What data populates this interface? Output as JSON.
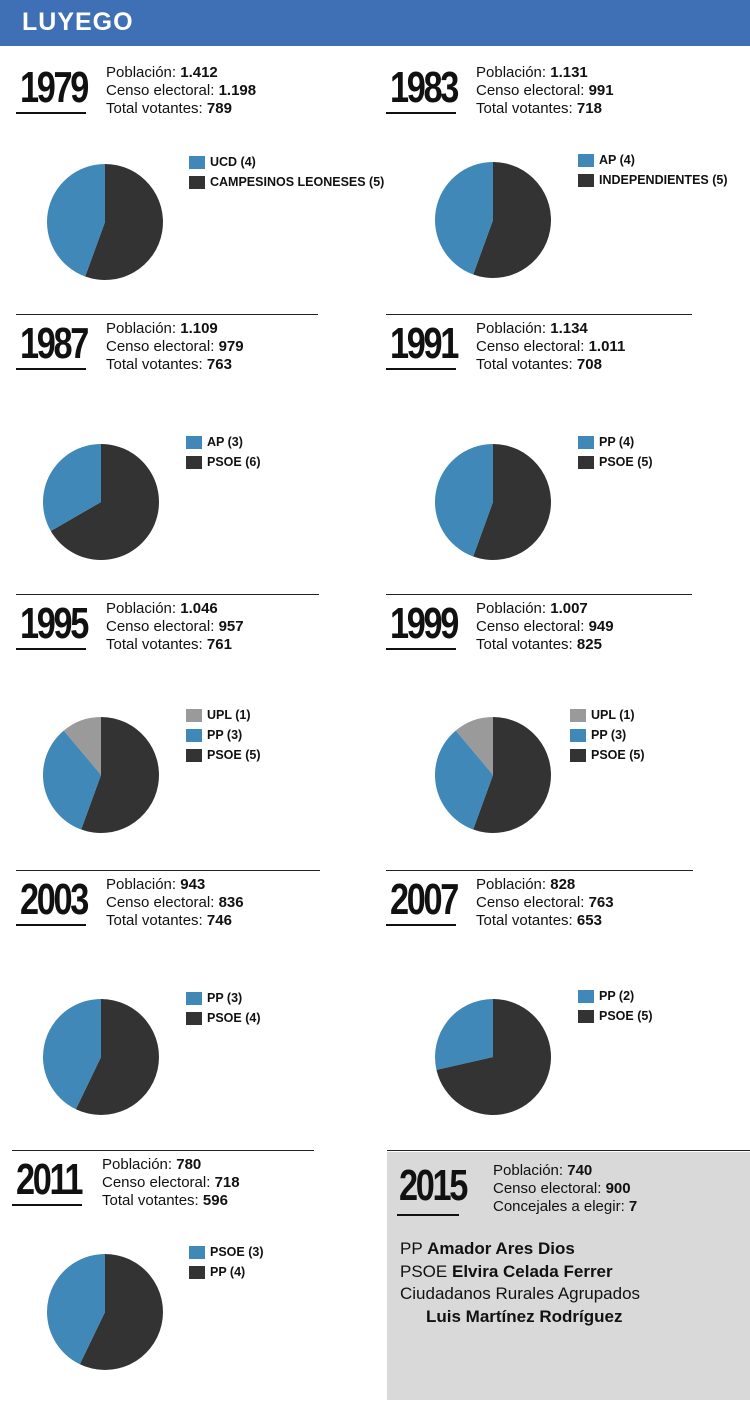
{
  "header": {
    "title": "LUYEGO"
  },
  "labels": {
    "poblacion": "Población:",
    "censo": "Censo electoral:",
    "votantes": "Total votantes:",
    "concejales": "Concejales a elegir:"
  },
  "colors": {
    "blue": "#3f88b8",
    "dark": "#333333",
    "gray": "#9a9a9a",
    "header": "#3f6fb5",
    "panel": "#d9d9d9"
  },
  "elections": [
    {
      "year": "1979",
      "poblacion": "1.412",
      "censo": "1.198",
      "votantes": "789",
      "legend": [
        "UCD (4)",
        "CAMPESINOS LEONESES (5)"
      ]
    },
    {
      "year": "1983",
      "poblacion": "1.131",
      "censo": "991",
      "votantes": "718",
      "legend": [
        "AP (4)",
        "INDEPENDIENTES (5)"
      ]
    },
    {
      "year": "1987",
      "poblacion": "1.109",
      "censo": "979",
      "votantes": "763",
      "legend": [
        "AP (3)",
        "PSOE (6)"
      ]
    },
    {
      "year": "1991",
      "poblacion": "1.134",
      "censo": "1.011",
      "votantes": "708",
      "legend": [
        "PP (4)",
        "PSOE (5)"
      ]
    },
    {
      "year": "1995",
      "poblacion": "1.046",
      "censo": "957",
      "votantes": "761",
      "legend": [
        "UPL (1)",
        "PP (3)",
        "PSOE (5)"
      ]
    },
    {
      "year": "1999",
      "poblacion": "1.007",
      "censo": "949",
      "votantes": "825",
      "legend": [
        "UPL (1)",
        "PP (3)",
        "PSOE (5)"
      ]
    },
    {
      "year": "2003",
      "poblacion": "943",
      "censo": "836",
      "votantes": "746",
      "legend": [
        "PP (3)",
        "PSOE (4)"
      ]
    },
    {
      "year": "2007",
      "poblacion": "828",
      "censo": "763",
      "votantes": "653",
      "legend": [
        "PP (2)",
        "PSOE (5)"
      ]
    },
    {
      "year": "2011",
      "poblacion": "780",
      "censo": "718",
      "votantes": "596",
      "legend": [
        "PSOE (3)",
        "PP (4)"
      ]
    }
  ],
  "e2015": {
    "year": "2015",
    "poblacion": "740",
    "censo": "900",
    "concejales": "7",
    "candidates": [
      {
        "party": "PP",
        "name": "Amador Ares Dios"
      },
      {
        "party": "PSOE",
        "name": "Elvira Celada Ferrer"
      },
      {
        "party": "",
        "name": "Ciudadanos Rurales Agrupados"
      },
      {
        "party": "",
        "name": "Luis Martínez Rodríguez"
      }
    ]
  },
  "chart_data": [
    {
      "type": "pie",
      "title": "1979",
      "labels": [
        "UCD",
        "CAMPESINOS LEONESES"
      ],
      "values": [
        4,
        5
      ],
      "colors": [
        "#3f88b8",
        "#333333"
      ]
    },
    {
      "type": "pie",
      "title": "1983",
      "labels": [
        "AP",
        "INDEPENDIENTES"
      ],
      "values": [
        4,
        5
      ],
      "colors": [
        "#3f88b8",
        "#333333"
      ]
    },
    {
      "type": "pie",
      "title": "1987",
      "labels": [
        "AP",
        "PSOE"
      ],
      "values": [
        3,
        6
      ],
      "colors": [
        "#3f88b8",
        "#333333"
      ]
    },
    {
      "type": "pie",
      "title": "1991",
      "labels": [
        "PP",
        "PSOE"
      ],
      "values": [
        4,
        5
      ],
      "colors": [
        "#3f88b8",
        "#333333"
      ]
    },
    {
      "type": "pie",
      "title": "1995",
      "labels": [
        "UPL",
        "PP",
        "PSOE"
      ],
      "values": [
        1,
        3,
        5
      ],
      "colors": [
        "#9a9a9a",
        "#3f88b8",
        "#333333"
      ]
    },
    {
      "type": "pie",
      "title": "1999",
      "labels": [
        "UPL",
        "PP",
        "PSOE"
      ],
      "values": [
        1,
        3,
        5
      ],
      "colors": [
        "#9a9a9a",
        "#3f88b8",
        "#333333"
      ]
    },
    {
      "type": "pie",
      "title": "2003",
      "labels": [
        "PP",
        "PSOE"
      ],
      "values": [
        3,
        4
      ],
      "colors": [
        "#3f88b8",
        "#333333"
      ]
    },
    {
      "type": "pie",
      "title": "2007",
      "labels": [
        "PP",
        "PSOE"
      ],
      "values": [
        2,
        5
      ],
      "colors": [
        "#3f88b8",
        "#333333"
      ]
    },
    {
      "type": "pie",
      "title": "2011",
      "labels": [
        "PSOE",
        "PP"
      ],
      "values": [
        3,
        4
      ],
      "colors": [
        "#3f88b8",
        "#333333"
      ]
    }
  ]
}
